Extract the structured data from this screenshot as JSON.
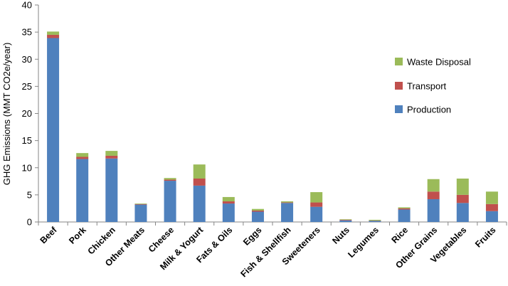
{
  "chart_data": {
    "type": "bar",
    "stacked": true,
    "ylabel": "GHG Emissions  (MMT CO2e/year)",
    "ylim": [
      0,
      40
    ],
    "yticks": [
      0,
      5,
      10,
      15,
      20,
      25,
      30,
      35,
      40
    ],
    "grid": false,
    "legend_position": "right",
    "categories": [
      "Beef",
      "Pork",
      "Chicken",
      "Other Meats",
      "Cheese",
      "Milk & Yogurt",
      "Fats & Oils",
      "Eggs",
      "Fish & Shellfish",
      "Sweeteners",
      "Nuts",
      "Legumes",
      "Rice",
      "Other Grains",
      "Vegetables",
      "Fruits"
    ],
    "series": [
      {
        "name": "Production",
        "color": "#4f81bd",
        "values": [
          33.9,
          11.6,
          11.7,
          3.2,
          7.6,
          6.7,
          3.4,
          1.9,
          3.5,
          2.8,
          0.3,
          0.2,
          2.3,
          4.2,
          3.5,
          2.0
        ]
      },
      {
        "name": "Transport",
        "color": "#c0504d",
        "values": [
          0.6,
          0.4,
          0.5,
          0.1,
          0.2,
          1.3,
          0.4,
          0.2,
          0.1,
          0.8,
          0.1,
          0.05,
          0.2,
          1.4,
          1.5,
          1.3
        ]
      },
      {
        "name": "Waste Disposal",
        "color": "#9bbb59",
        "values": [
          0.6,
          0.7,
          0.9,
          0.1,
          0.3,
          2.6,
          0.8,
          0.3,
          0.2,
          1.9,
          0.1,
          0.15,
          0.2,
          2.3,
          3.0,
          2.3
        ]
      }
    ],
    "legend_order": [
      "Waste Disposal",
      "Transport",
      "Production"
    ]
  }
}
